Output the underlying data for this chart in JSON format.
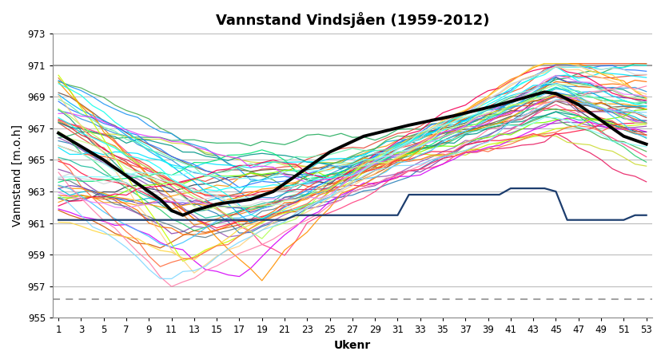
{
  "title": "Vannstand Vindsjåen (1959-2012)",
  "xlabel": "Ukenr",
  "ylabel": "Vannstand [m.o.h]",
  "ylim": [
    955,
    973
  ],
  "xlim": [
    1,
    53
  ],
  "yticks": [
    955,
    957,
    959,
    961,
    963,
    965,
    967,
    969,
    971,
    973
  ],
  "xticks": [
    1,
    3,
    5,
    7,
    9,
    11,
    13,
    15,
    17,
    19,
    21,
    23,
    25,
    27,
    29,
    31,
    33,
    35,
    37,
    39,
    41,
    43,
    45,
    47,
    49,
    51,
    53
  ],
  "upper_limit": 971.0,
  "lower_limit": 956.2,
  "background_color": "#ffffff",
  "grid_color": "#bbbbbb",
  "title_fontsize": 13,
  "axis_label_fontsize": 10,
  "colors": [
    "#c0392b",
    "#27ae60",
    "#e67e22",
    "#2980b9",
    "#8e44ad",
    "#16a085",
    "#d35400",
    "#2c3e50",
    "#e74c3c",
    "#1abc9c",
    "#f39c12",
    "#3498db",
    "#9b59b6",
    "#2ecc71",
    "#e91e63",
    "#00bcd4",
    "#ff5722",
    "#607d8b",
    "#795548",
    "#cddc39",
    "#ff9800",
    "#009688",
    "#673ab7",
    "#f44336",
    "#4caf50",
    "#2196f3",
    "#ff4081",
    "#00e5ff",
    "#76ff03",
    "#ff6d00",
    "#d500f9",
    "#00b0ff",
    "#c6ff00",
    "#ff1744",
    "#00e676",
    "#2979ff",
    "#ff9100",
    "#14ffec",
    "#f50057",
    "#69f0ae",
    "#40c4ff",
    "#ffd740",
    "#e040fb",
    "#b2ff59",
    "#ff6e40",
    "#18ffff",
    "#ea80fc",
    "#ccff90",
    "#84ffff",
    "#ffd180",
    "#ff80ab",
    "#a7ffeb",
    "#80d8ff",
    "#cfd8dc"
  ]
}
